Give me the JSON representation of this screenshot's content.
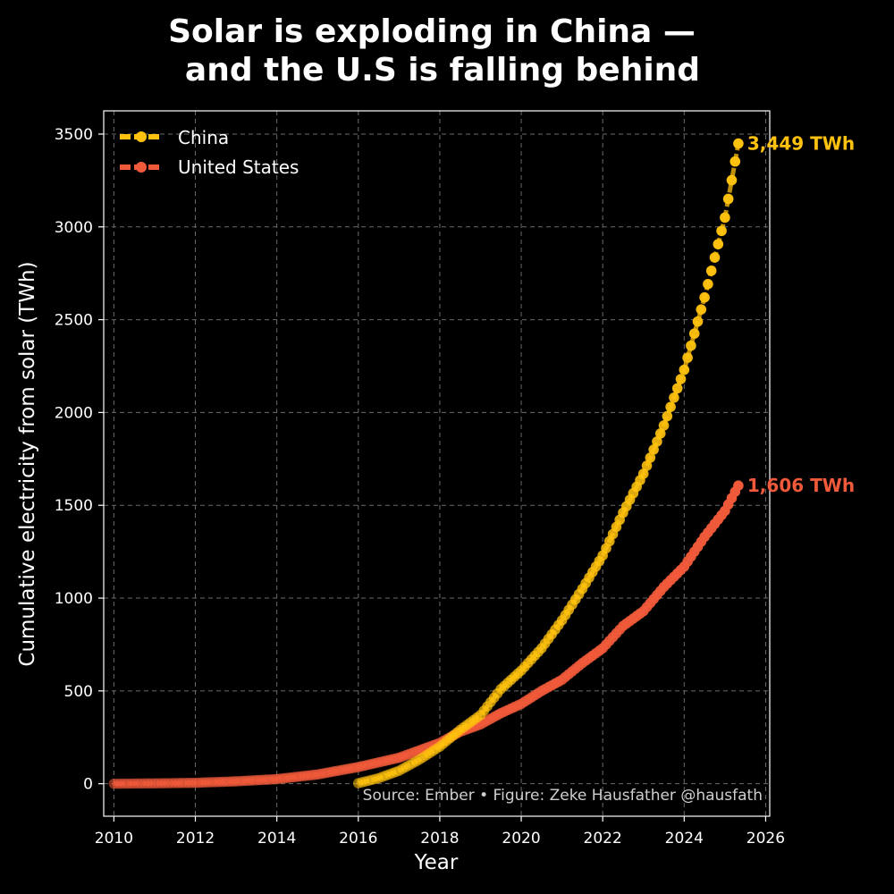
{
  "colors": {
    "china": "#FFC20E",
    "us": "#F05A3A",
    "background": "#000000",
    "grid": "#6b6b6b",
    "text": "#ffffff"
  },
  "chart_data": {
    "type": "line",
    "title_lines": [
      "Solar is exploding in China —",
      "and the U.S is falling behind"
    ],
    "xlabel": "Year",
    "ylabel": "Cumulative electricity from solar (TWh)",
    "xlim": [
      2009.75,
      2026.1
    ],
    "ylim": [
      -175,
      3625
    ],
    "xticks": [
      2010,
      2012,
      2014,
      2016,
      2018,
      2020,
      2022,
      2024,
      2026
    ],
    "yticks": [
      0,
      500,
      1000,
      1500,
      2000,
      2500,
      3000,
      3500
    ],
    "grid": true,
    "legend_position": "top-left",
    "legend": [
      "China",
      "United States"
    ],
    "source_text": "Source: Ember • Figure: Zeke Hausfather  @hausfath",
    "series": [
      {
        "name": "China",
        "color_key": "china",
        "start": [
          2016.0,
          3
        ],
        "end": [
          2025.33,
          3449
        ],
        "end_label": "3,449 TWh",
        "x": [
          2016.0,
          2016.5,
          2017.0,
          2017.5,
          2018.0,
          2018.5,
          2019.0,
          2019.5,
          2020.0,
          2020.5,
          2021.0,
          2021.5,
          2022.0,
          2022.5,
          2023.0,
          2023.5,
          2024.0,
          2024.5,
          2025.0,
          2025.33
        ],
        "y": [
          3,
          30,
          70,
          130,
          200,
          290,
          370,
          510,
          610,
          730,
          880,
          1050,
          1230,
          1460,
          1670,
          1930,
          2230,
          2620,
          3050,
          3449
        ]
      },
      {
        "name": "United States",
        "color_key": "us",
        "start": [
          2010.0,
          0
        ],
        "end": [
          2025.33,
          1606
        ],
        "end_label": "1,606 TWh",
        "x": [
          2010.0,
          2011.0,
          2012.0,
          2013.0,
          2014.0,
          2015.0,
          2016.0,
          2017.0,
          2018.0,
          2018.5,
          2019.0,
          2019.5,
          2020.0,
          2020.5,
          2021.0,
          2021.5,
          2022.0,
          2022.5,
          2023.0,
          2023.5,
          2024.0,
          2024.5,
          2025.0,
          2025.33
        ],
        "y": [
          0,
          2,
          5,
          13,
          25,
          50,
          90,
          140,
          220,
          280,
          320,
          380,
          430,
          500,
          560,
          650,
          730,
          850,
          930,
          1060,
          1170,
          1330,
          1470,
          1606
        ]
      }
    ]
  }
}
